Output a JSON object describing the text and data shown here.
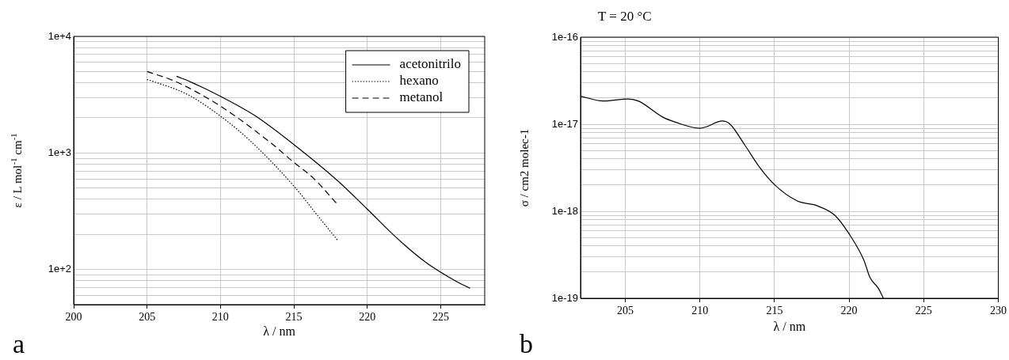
{
  "chart_data": [
    {
      "type": "line",
      "xlabel": "λ / nm",
      "ylabel": "ε / L mol$^{-1}$ cm$^{-1}$",
      "annotations": [
        "a"
      ],
      "log": "y",
      "grid": true,
      "legend": "top right",
      "marker": "none",
      "xlim": [
        200,
        228
      ],
      "xticks": [
        200,
        205,
        210,
        215,
        220,
        225
      ],
      "ylim": [
        50,
        10000
      ],
      "yticks": [
        {
          "value": 50,
          "label": null
        },
        {
          "value": 60,
          "label": null
        },
        {
          "value": 70,
          "label": null
        },
        {
          "value": 80,
          "label": null
        },
        {
          "value": 90,
          "label": null
        },
        {
          "value": 100,
          "label": "1e+2"
        },
        {
          "value": 200,
          "label": null
        },
        {
          "value": 300,
          "label": null
        },
        {
          "value": 400,
          "label": null
        },
        {
          "value": 500,
          "label": null
        },
        {
          "value": 600,
          "label": null
        },
        {
          "value": 700,
          "label": null
        },
        {
          "value": 800,
          "label": null
        },
        {
          "value": 900,
          "label": null
        },
        {
          "value": 1000,
          "label": "1e+3"
        },
        {
          "value": 2000,
          "label": null
        },
        {
          "value": 3000,
          "label": null
        },
        {
          "value": 4000,
          "label": null
        },
        {
          "value": 5000,
          "label": null
        },
        {
          "value": 6000,
          "label": null
        },
        {
          "value": 7000,
          "label": null
        },
        {
          "value": 8000,
          "label": null
        },
        {
          "value": 9000,
          "label": null
        },
        {
          "value": 10000,
          "label": "1e+4"
        }
      ],
      "series": [
        {
          "name": "acetonitrilo",
          "color": "#000000",
          "line_style": "solid",
          "x": [
            207,
            208,
            210,
            212.4,
            215,
            218,
            220,
            222,
            224,
            226,
            227
          ],
          "values": [
            4550,
            4050,
            3060,
            2070,
            1180,
            575,
            330,
            187,
            115,
            80,
            69
          ]
        },
        {
          "name": "hexano",
          "color": "#000000",
          "line_style": "dotted",
          "x": [
            205,
            207,
            208,
            210,
            212,
            215,
            216.6,
            218
          ],
          "values": [
            4270,
            3500,
            3060,
            2070,
            1280,
            520,
            292,
            177
          ]
        },
        {
          "name": "metanol",
          "color": "#000000",
          "line_style": "dashed",
          "x": [
            205,
            207,
            210,
            213.4,
            215,
            216.3,
            218
          ],
          "values": [
            5000,
            4070,
            2520,
            1230,
            830,
            613,
            359
          ]
        }
      ]
    },
    {
      "type": "line",
      "title": "T = 20 °C",
      "xlabel": "λ / nm",
      "ylabel": "σ / cm2 molec-1",
      "annotations": [
        "b"
      ],
      "log": "y",
      "grid": true,
      "marker": "none",
      "line_style": "solid",
      "xlim": [
        202,
        230
      ],
      "xticks": [
        205,
        210,
        215,
        220,
        225,
        230
      ],
      "ylim": [
        1e-19,
        1e-16
      ],
      "yticks": [
        {
          "value": 1e-19,
          "label": "1e-19"
        },
        {
          "value": 2e-19,
          "label": null
        },
        {
          "value": 3e-19,
          "label": null
        },
        {
          "value": 4e-19,
          "label": null
        },
        {
          "value": 5e-19,
          "label": null
        },
        {
          "value": 6e-19,
          "label": null
        },
        {
          "value": 7e-19,
          "label": null
        },
        {
          "value": 8e-19,
          "label": null
        },
        {
          "value": 9e-19,
          "label": null
        },
        {
          "value": 1e-18,
          "label": "1e-18"
        },
        {
          "value": 2e-18,
          "label": null
        },
        {
          "value": 3e-18,
          "label": null
        },
        {
          "value": 4e-18,
          "label": null
        },
        {
          "value": 5e-18,
          "label": null
        },
        {
          "value": 6e-18,
          "label": null
        },
        {
          "value": 7e-18,
          "label": null
        },
        {
          "value": 8e-18,
          "label": null
        },
        {
          "value": 9e-18,
          "label": null
        },
        {
          "value": 1e-17,
          "label": "1e-17"
        },
        {
          "value": 2e-17,
          "label": null
        },
        {
          "value": 3e-17,
          "label": null
        },
        {
          "value": 4e-17,
          "label": null
        },
        {
          "value": 5e-17,
          "label": null
        },
        {
          "value": 6e-17,
          "label": null
        },
        {
          "value": 7e-17,
          "label": null
        },
        {
          "value": 8e-17,
          "label": null
        },
        {
          "value": 9e-17,
          "label": null
        },
        {
          "value": 1e-16,
          "label": "1e-16"
        }
      ],
      "series": [
        {
          "color": "#000000",
          "x": [
            202,
            203.5,
            205.2,
            205.9,
            207.5,
            208.4,
            210,
            210.4,
            211.5,
            212,
            213,
            214,
            215,
            216.5,
            217.9,
            219.05,
            220,
            221,
            221.4,
            221.95,
            222.3
          ],
          "values": [
            2.1e-17,
            1.85e-17,
            1.95e-17,
            1.84e-17,
            1.21e-17,
            1.05e-17,
            9e-18,
            9.3e-18,
            1.09e-17,
            1.01e-17,
            5.8e-18,
            3.2e-18,
            2.02e-18,
            1.32e-18,
            1.15e-18,
            8.97e-19,
            5.5e-19,
            2.72e-19,
            1.73e-19,
            1.31e-19,
            1e-19
          ]
        }
      ]
    }
  ]
}
